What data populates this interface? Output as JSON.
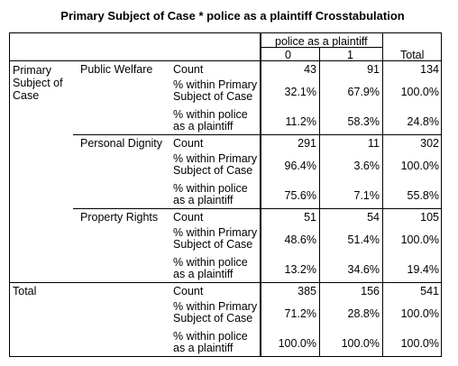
{
  "title": "Primary Subject of Case * police as a plaintiff Crosstabulation",
  "header": {
    "group_label": "police as a plaintiff",
    "col_0": "0",
    "col_1": "1",
    "col_total": "Total"
  },
  "row_variable": "Primary Subject of Case",
  "stat_labels": {
    "count": "Count",
    "within_primary_l1": "% within Primary",
    "within_primary_l2": "Subject of Case",
    "within_police_l1": "% within police",
    "within_police_l2": "as a plaintiff"
  },
  "groups": [
    {
      "name": "Public Welfare",
      "count": [
        "43",
        "91",
        "134"
      ],
      "within_primary": [
        "32.1%",
        "67.9%",
        "100.0%"
      ],
      "within_police": [
        "11.2%",
        "58.3%",
        "24.8%"
      ]
    },
    {
      "name": "Personal Dignity",
      "count": [
        "291",
        "11",
        "302"
      ],
      "within_primary": [
        "96.4%",
        "3.6%",
        "100.0%"
      ],
      "within_police": [
        "75.6%",
        "7.1%",
        "55.8%"
      ]
    },
    {
      "name": "Property Rights",
      "count": [
        "51",
        "54",
        "105"
      ],
      "within_primary": [
        "48.6%",
        "51.4%",
        "100.0%"
      ],
      "within_police": [
        "13.2%",
        "34.6%",
        "19.4%"
      ]
    }
  ],
  "total": {
    "name": "Total",
    "count": [
      "385",
      "156",
      "541"
    ],
    "within_primary": [
      "71.2%",
      "28.8%",
      "100.0%"
    ],
    "within_police": [
      "100.0%",
      "100.0%",
      "100.0%"
    ]
  }
}
